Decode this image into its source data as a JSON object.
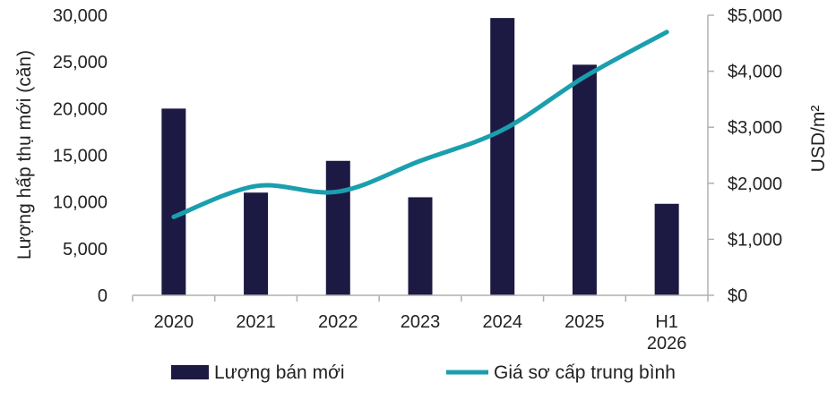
{
  "chart_data": {
    "type": "bar",
    "categories": [
      "2020",
      "2021",
      "2022",
      "2023",
      "2024",
      "2025",
      "H1 2026"
    ],
    "series": [
      {
        "name": "Lượng bán mới",
        "type": "bar",
        "axis": "left",
        "color": "#1c1a42",
        "values": [
          20000,
          11000,
          14400,
          10500,
          29700,
          24700,
          9800
        ]
      },
      {
        "name": "Giá sơ cấp trung bình",
        "type": "line",
        "axis": "right",
        "color": "#1a9fae",
        "values": [
          1400,
          1950,
          1850,
          2400,
          2950,
          3900,
          4700
        ]
      }
    ],
    "ylabel": "Lượng hấp thụ mới (căn)",
    "y2label": "USD/m²",
    "ylim": [
      0,
      30000
    ],
    "y2lim": [
      0,
      5000
    ],
    "yticks": [
      "0",
      "5,000",
      "10,000",
      "15,000",
      "20,000",
      "25,000",
      "30,000"
    ],
    "y2ticks": [
      "$0",
      "$1,000",
      "$2,000",
      "$3,000",
      "$4,000",
      "$5,000"
    ],
    "xtick_lines": [
      [
        "2020"
      ],
      [
        "2021"
      ],
      [
        "2022"
      ],
      [
        "2023"
      ],
      [
        "2024"
      ],
      [
        "2025"
      ],
      [
        "H1",
        "2026"
      ]
    ],
    "legend_position": "bottom",
    "grid": false
  }
}
